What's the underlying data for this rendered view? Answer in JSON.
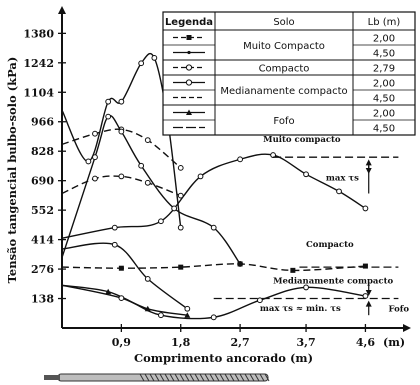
{
  "chart_data": {
    "type": "line",
    "ylabel": "Tensão tangencial bulbo-solo (kPa)",
    "xlabel": "Comprimento ancorado (m)",
    "x_unit_label": "(m)",
    "yticks": [
      "138",
      "276",
      "414",
      "552",
      "690",
      "828",
      "966",
      "1104",
      "1242",
      "1380"
    ],
    "ytick_values": [
      138,
      276,
      414,
      552,
      690,
      828,
      966,
      1104,
      1242,
      1380
    ],
    "xticks": [
      "0,9",
      "1,8",
      "2,7",
      "3,7",
      "4,6"
    ],
    "xtick_values": [
      0.9,
      1.8,
      2.7,
      3.7,
      4.6
    ],
    "xlim": [
      0,
      5.2
    ],
    "ylim": [
      0,
      1480
    ],
    "series": [
      {
        "group": "Muito Compacto",
        "lb": "2,00",
        "style": "solid",
        "marker": "circle",
        "points": [
          [
            0.0,
            1020
          ],
          [
            0.4,
            780
          ],
          [
            0.7,
            1060
          ],
          [
            0.9,
            1060
          ],
          [
            1.2,
            1240
          ],
          [
            1.4,
            1265
          ],
          [
            1.6,
            980
          ],
          [
            1.8,
            470
          ]
        ]
      },
      {
        "group": "Muito Compacto",
        "lb": "4,50",
        "style": "solid",
        "marker": "circle",
        "points": [
          [
            0.0,
            420
          ],
          [
            0.8,
            470
          ],
          [
            1.5,
            500
          ],
          [
            2.1,
            710
          ],
          [
            2.7,
            790
          ],
          [
            3.2,
            810
          ],
          [
            3.7,
            720
          ],
          [
            4.2,
            640
          ],
          [
            4.6,
            560
          ]
        ]
      },
      {
        "group": "Compacto",
        "lb": "2,79",
        "style": "dashed",
        "marker": "circle",
        "points": [
          [
            0.0,
            860
          ],
          [
            0.5,
            910
          ],
          [
            0.9,
            930
          ],
          [
            1.3,
            880
          ],
          [
            1.8,
            750
          ]
        ]
      },
      {
        "group": "Medianamente compacto",
        "lb": "2,00",
        "style": "dashed",
        "marker": "circle",
        "points": [
          [
            0.0,
            630
          ],
          [
            0.5,
            700
          ],
          [
            0.9,
            710
          ],
          [
            1.3,
            680
          ],
          [
            1.8,
            620
          ]
        ]
      },
      {
        "group": "Medianamente compacto",
        "lb": "4,50",
        "style": "solid",
        "marker": "circle",
        "points": [
          [
            0.0,
            330
          ],
          [
            0.5,
            800
          ],
          [
            0.7,
            990
          ],
          [
            0.9,
            920
          ],
          [
            1.2,
            760
          ],
          [
            1.7,
            560
          ],
          [
            2.3,
            470
          ],
          [
            2.7,
            300
          ]
        ]
      },
      {
        "group": "Compacto",
        "lb": "2,79",
        "style": "dashed",
        "marker": "square",
        "points": [
          [
            0.0,
            285
          ],
          [
            0.9,
            280
          ],
          [
            1.8,
            285
          ],
          [
            2.7,
            300
          ],
          [
            3.5,
            270
          ],
          [
            4.6,
            290
          ]
        ]
      },
      {
        "group": "Medianamente compacto",
        "lb": "2,00",
        "style": "solid",
        "marker": "circle",
        "points": [
          [
            0.0,
            370
          ],
          [
            0.8,
            390
          ],
          [
            1.3,
            230
          ],
          [
            1.9,
            90
          ]
        ]
      },
      {
        "group": "Fofo",
        "lb": "2,00",
        "style": "solid",
        "marker": "triangle",
        "points": [
          [
            0.0,
            200
          ],
          [
            0.7,
            170
          ],
          [
            1.3,
            90
          ],
          [
            1.9,
            60
          ]
        ]
      },
      {
        "group": "Fofo",
        "lb": "4,50",
        "style": "solid",
        "marker": "circle",
        "points": [
          [
            0.0,
            200
          ],
          [
            0.9,
            140
          ],
          [
            1.5,
            60
          ],
          [
            2.3,
            50
          ],
          [
            3.0,
            130
          ],
          [
            3.7,
            190
          ],
          [
            4.6,
            150
          ]
        ]
      }
    ],
    "max_lines": [
      {
        "y": 800,
        "x_range": [
          3.2,
          5.1
        ]
      },
      {
        "y": 285,
        "x_range": [
          3.6,
          5.1
        ]
      },
      {
        "y": 138,
        "x_range": [
          2.3,
          5.1
        ]
      }
    ],
    "annotations": {
      "muito_compacto": "Muito compacto",
      "max_ts_1": "max τs",
      "compacto": "Compacto",
      "medianamente": "Medianamente compacto",
      "max_ts_2": "max τs ≈ min. τs",
      "fofo": "Fofo"
    },
    "legend": {
      "position": "top-right",
      "headers": [
        "Legenda",
        "Solo",
        "Lb (m)"
      ],
      "groups": [
        {
          "solo": "Muito Compacto",
          "rows": [
            {
              "style": "dash-square",
              "lb": "2,00"
            },
            {
              "style": "solid-dot",
              "lb": "4,50"
            }
          ]
        },
        {
          "solo": "Compacto",
          "rows": [
            {
              "style": "dash-circle",
              "lb": "2,79"
            }
          ]
        },
        {
          "solo": "Medianamente compacto",
          "rows": [
            {
              "style": "solid-circle",
              "lb": "2,00"
            },
            {
              "style": "dash-plain",
              "lb": "4,50"
            }
          ]
        },
        {
          "solo": "Fofo",
          "rows": [
            {
              "style": "solid-triangle",
              "lb": "2,00"
            },
            {
              "style": "solid-dash",
              "lb": "4,50"
            }
          ]
        }
      ]
    }
  }
}
